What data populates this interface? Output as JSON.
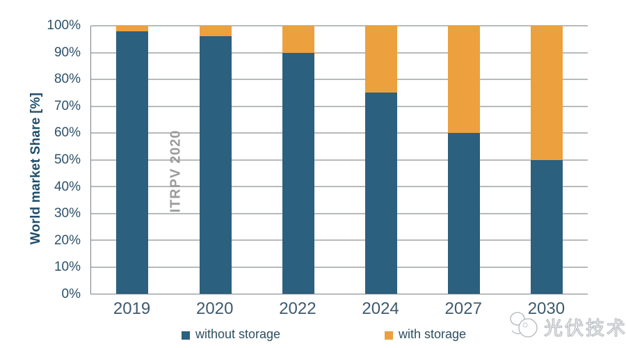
{
  "chart_data": {
    "type": "bar",
    "stacked": true,
    "title": "",
    "categories": [
      "2019",
      "2020",
      "2022",
      "2024",
      "2027",
      "2030"
    ],
    "series": [
      {
        "name": "without storage",
        "color": "#2b607f",
        "values": [
          98,
          96,
          90,
          75,
          60,
          50
        ]
      },
      {
        "name": "with storage",
        "color": "#eca03e",
        "values": [
          2,
          4,
          10,
          25,
          40,
          50
        ]
      }
    ],
    "xlabel": "",
    "ylabel": "World market Share [%]",
    "ylim": [
      0,
      100
    ],
    "ytick_step": 10,
    "ytick_suffix": "%",
    "grid": true,
    "gridline_color": "#6f7477",
    "legend_position": "bottom",
    "watermark": "ITRPV 2020"
  },
  "branding": {
    "name": "光伏技术"
  }
}
